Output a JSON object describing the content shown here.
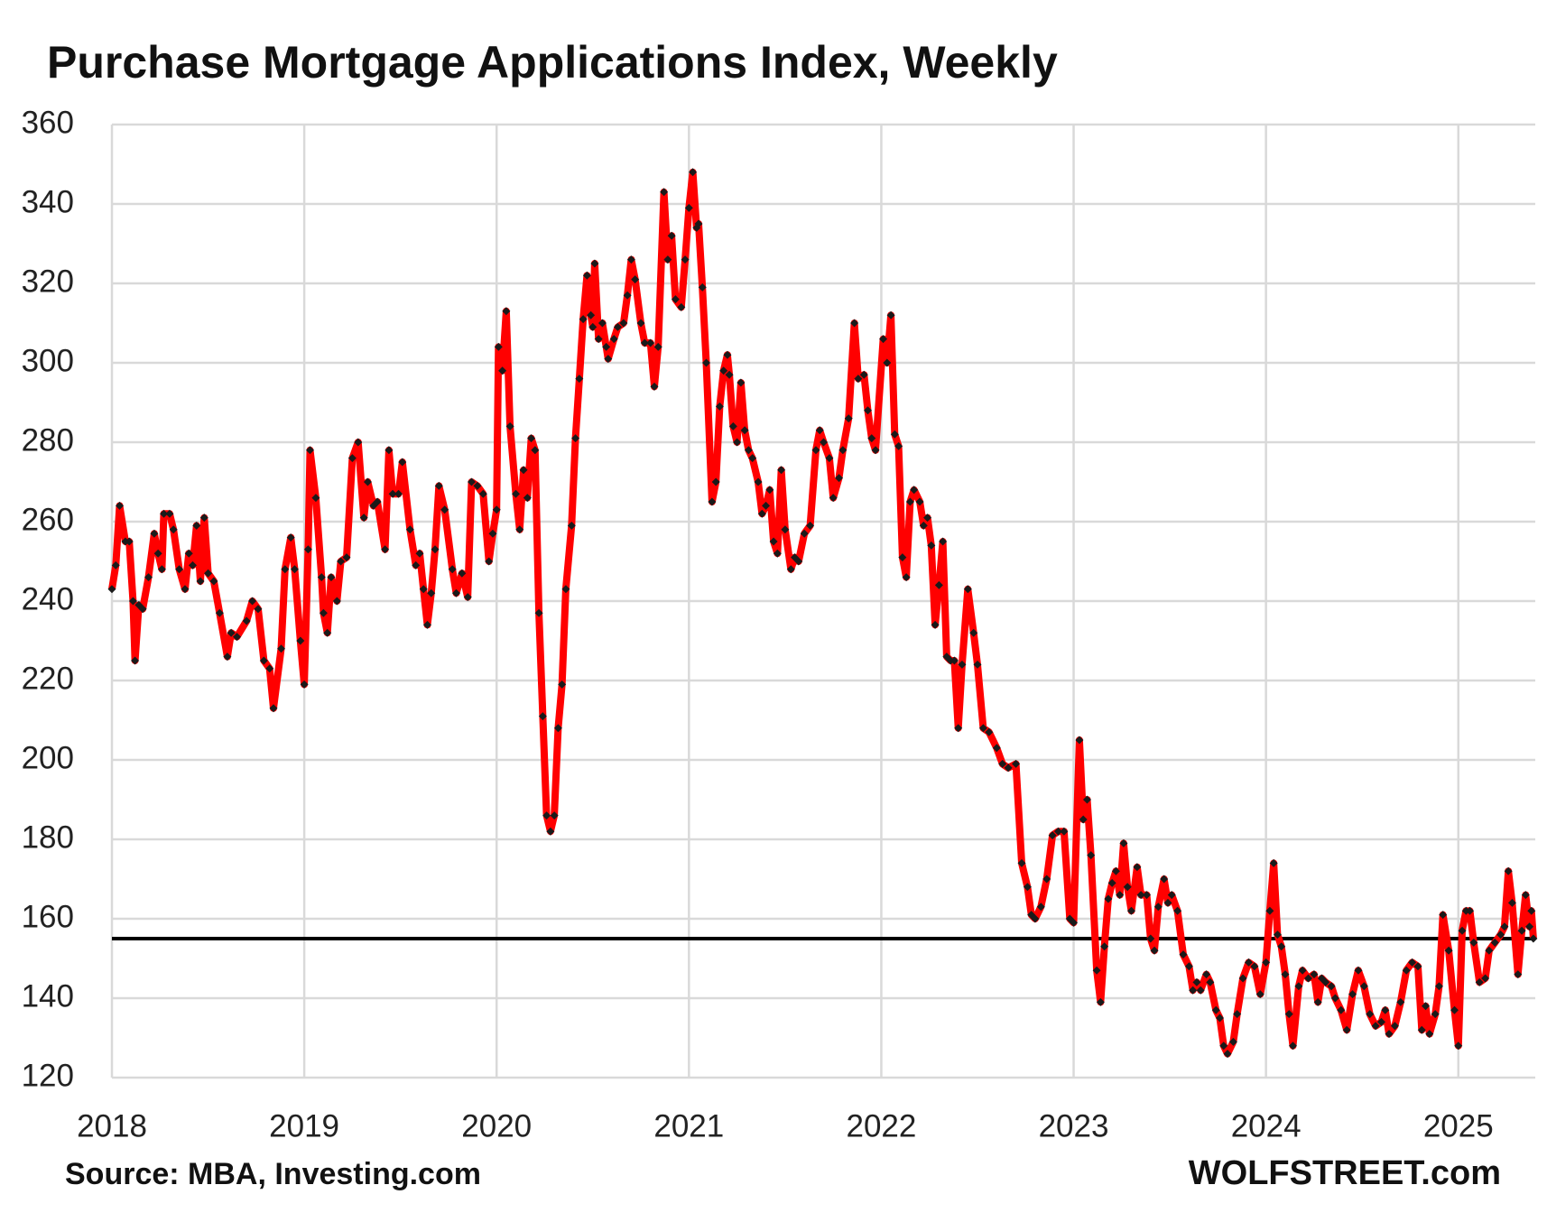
{
  "chart_data": {
    "type": "line",
    "title": "Purchase Mortgage Applications Index, Weekly",
    "source": "Source: MBA, Investing.com",
    "credit": "WOLFSTREET.com",
    "x": [
      2018.0,
      2018.02,
      2018.04,
      2018.07,
      2018.09,
      2018.11,
      2018.12,
      2018.14,
      2018.16,
      2018.19,
      2018.22,
      2018.24,
      2018.26,
      2018.27,
      2018.3,
      2018.32,
      2018.35,
      2018.38,
      2018.4,
      2018.42,
      2018.44,
      2018.46,
      2018.48,
      2018.5,
      2018.53,
      2018.56,
      2018.6,
      2018.62,
      2018.65,
      2018.7,
      2018.73,
      2018.76,
      2018.79,
      2018.82,
      2018.84,
      2018.88,
      2018.9,
      2018.93,
      2018.95,
      2018.98,
      2019.0,
      2019.02,
      2019.03,
      2019.06,
      2019.09,
      2019.1,
      2019.12,
      2019.14,
      2019.17,
      2019.19,
      2019.22,
      2019.25,
      2019.28,
      2019.31,
      2019.33,
      2019.36,
      2019.38,
      2019.42,
      2019.44,
      2019.46,
      2019.49,
      2019.51,
      2019.55,
      2019.58,
      2019.6,
      2019.62,
      2019.64,
      2019.66,
      2019.68,
      2019.7,
      2019.73,
      2019.77,
      2019.79,
      2019.82,
      2019.85,
      2019.87,
      2019.9,
      2019.93,
      2019.96,
      2019.98,
      2020.0,
      2020.01,
      2020.03,
      2020.05,
      2020.07,
      2020.1,
      2020.12,
      2020.14,
      2020.16,
      2020.18,
      2020.2,
      2020.22,
      2020.24,
      2020.26,
      2020.28,
      2020.3,
      2020.32,
      2020.34,
      2020.36,
      2020.39,
      2020.41,
      2020.43,
      2020.45,
      2020.47,
      2020.49,
      2020.5,
      2020.51,
      2020.53,
      2020.55,
      2020.57,
      2020.58,
      2020.61,
      2020.63,
      2020.66,
      2020.68,
      2020.7,
      2020.72,
      2020.75,
      2020.77,
      2020.8,
      2020.82,
      2020.84,
      2020.87,
      2020.89,
      2020.91,
      2020.93,
      2020.96,
      2020.98,
      2021.0,
      2021.02,
      2021.04,
      2021.05,
      2021.07,
      2021.09,
      2021.12,
      2021.14,
      2021.16,
      2021.18,
      2021.2,
      2021.21,
      2021.23,
      2021.25,
      2021.27,
      2021.29,
      2021.31,
      2021.33,
      2021.36,
      2021.38,
      2021.4,
      2021.42,
      2021.44,
      2021.46,
      2021.48,
      2021.5,
      2021.53,
      2021.55,
      2021.57,
      2021.6,
      2021.63,
      2021.66,
      2021.68,
      2021.7,
      2021.73,
      2021.75,
      2021.78,
      2021.8,
      2021.83,
      2021.86,
      2021.88,
      2021.91,
      2021.93,
      2021.95,
      2021.97,
      2022.01,
      2022.03,
      2022.05,
      2022.07,
      2022.09,
      2022.11,
      2022.13,
      2022.15,
      2022.17,
      2022.2,
      2022.22,
      2022.24,
      2022.26,
      2022.28,
      2022.3,
      2022.32,
      2022.34,
      2022.36,
      2022.38,
      2022.4,
      2022.42,
      2022.45,
      2022.48,
      2022.5,
      2022.53,
      2022.56,
      2022.6,
      2022.63,
      2022.66,
      2022.7,
      2022.73,
      2022.76,
      2022.78,
      2022.8,
      2022.83,
      2022.86,
      2022.89,
      2022.92,
      2022.95,
      2022.98,
      2023.0,
      2023.03,
      2023.05,
      2023.07,
      2023.09,
      2023.12,
      2023.14,
      2023.16,
      2023.18,
      2023.2,
      2023.22,
      2023.24,
      2023.26,
      2023.28,
      2023.3,
      2023.33,
      2023.35,
      2023.38,
      2023.4,
      2023.42,
      2023.44,
      2023.47,
      2023.49,
      2023.51,
      2023.54,
      2023.57,
      2023.6,
      2023.62,
      2023.64,
      2023.66,
      2023.69,
      2023.71,
      2023.74,
      2023.76,
      2023.78,
      2023.8,
      2023.83,
      2023.85,
      2023.88,
      2023.91,
      2023.94,
      2023.97,
      2024.0,
      2024.02,
      2024.04,
      2024.06,
      2024.08,
      2024.1,
      2024.12,
      2024.14,
      2024.17,
      2024.19,
      2024.22,
      2024.25,
      2024.27,
      2024.29,
      2024.31,
      2024.34,
      2024.36,
      2024.39,
      2024.42,
      2024.45,
      2024.48,
      2024.51,
      2024.54,
      2024.57,
      2024.6,
      2024.62,
      2024.64,
      2024.67,
      2024.7,
      2024.73,
      2024.76,
      2024.79,
      2024.81,
      2024.83,
      2024.85,
      2024.88,
      2024.9,
      2024.92,
      2024.95,
      2024.98,
      2025.0,
      2025.02,
      2025.04,
      2025.06,
      2025.08,
      2025.11,
      2025.14,
      2025.16,
      2025.19,
      2025.22,
      2025.24,
      2025.26,
      2025.28,
      2025.31,
      2025.33,
      2025.35,
      2025.37,
      2025.38,
      2025.39
    ],
    "series": [
      {
        "color": "#ff0000",
        "marker_color": "#1a1a1a",
        "values": [
          243,
          249,
          264,
          255,
          255,
          240,
          225,
          239,
          238,
          246,
          257,
          252,
          248,
          262,
          262,
          258,
          248,
          243,
          252,
          249,
          259,
          245,
          261,
          247,
          245,
          237,
          226,
          232,
          231,
          235,
          240,
          238,
          225,
          223,
          213,
          228,
          248,
          256,
          248,
          230,
          219,
          253,
          278,
          266,
          246,
          237,
          232,
          246,
          240,
          250,
          251,
          276,
          280,
          261,
          270,
          264,
          265,
          253,
          278,
          267,
          267,
          275,
          258,
          249,
          252,
          243,
          234,
          242,
          253,
          269,
          263,
          248,
          242,
          247,
          241,
          270,
          269,
          267,
          250,
          257,
          263,
          304,
          298,
          313,
          284,
          267,
          258,
          273,
          266,
          281,
          278,
          237,
          211,
          186,
          182,
          186,
          208,
          219,
          243,
          259,
          281,
          296,
          311,
          322,
          312,
          309,
          325,
          306,
          310,
          304,
          301,
          306,
          309,
          310,
          317,
          326,
          321,
          310,
          305,
          305,
          294,
          304,
          343,
          326,
          332,
          316,
          314,
          326,
          339,
          348,
          334,
          335,
          319,
          300,
          265,
          270,
          289,
          298,
          302,
          297,
          284,
          280,
          295,
          283,
          278,
          276,
          270,
          262,
          264,
          268,
          255,
          252,
          273,
          258,
          248,
          251,
          250,
          257,
          259,
          278,
          283,
          280,
          276,
          266,
          271,
          278,
          286,
          310,
          296,
          297,
          288,
          281,
          278,
          306,
          300,
          312,
          282,
          279,
          251,
          246,
          265,
          268,
          265,
          259,
          261,
          254,
          234,
          244,
          255,
          226,
          225,
          225,
          208,
          224,
          243,
          232,
          224,
          208,
          207,
          203,
          199,
          198,
          199,
          174,
          168,
          161,
          160,
          163,
          170,
          181,
          182,
          182,
          160,
          159,
          205,
          185,
          190,
          176,
          147,
          139,
          153,
          165,
          169,
          172,
          166,
          179,
          168,
          162,
          173,
          166,
          166,
          155,
          152,
          163,
          170,
          164,
          166,
          162,
          151,
          148,
          142,
          144,
          142,
          146,
          144,
          137,
          135,
          128,
          126,
          129,
          136,
          145,
          149,
          148,
          141,
          149,
          162,
          174,
          156,
          153,
          146,
          136,
          128,
          143,
          147,
          145,
          146,
          139,
          145,
          144,
          143,
          140,
          137,
          132,
          141,
          147,
          143,
          136,
          133,
          134,
          137,
          131,
          133,
          139,
          147,
          149,
          148,
          132,
          138,
          131,
          136,
          143,
          161,
          152,
          137,
          128,
          157,
          162,
          162,
          154,
          144,
          145,
          152,
          154,
          156,
          158,
          172,
          164,
          146,
          157,
          166,
          158,
          162,
          155
        ]
      }
    ],
    "reference_line": 155,
    "reference_color": "#000000",
    "xlim": [
      2018,
      2025.4
    ],
    "xticks": [
      2018,
      2019,
      2020,
      2021,
      2022,
      2023,
      2024,
      2025
    ],
    "ylim": [
      120,
      360
    ],
    "yticks": [
      120,
      140,
      160,
      180,
      200,
      220,
      240,
      260,
      280,
      300,
      320,
      340,
      360
    ],
    "grid": true
  }
}
